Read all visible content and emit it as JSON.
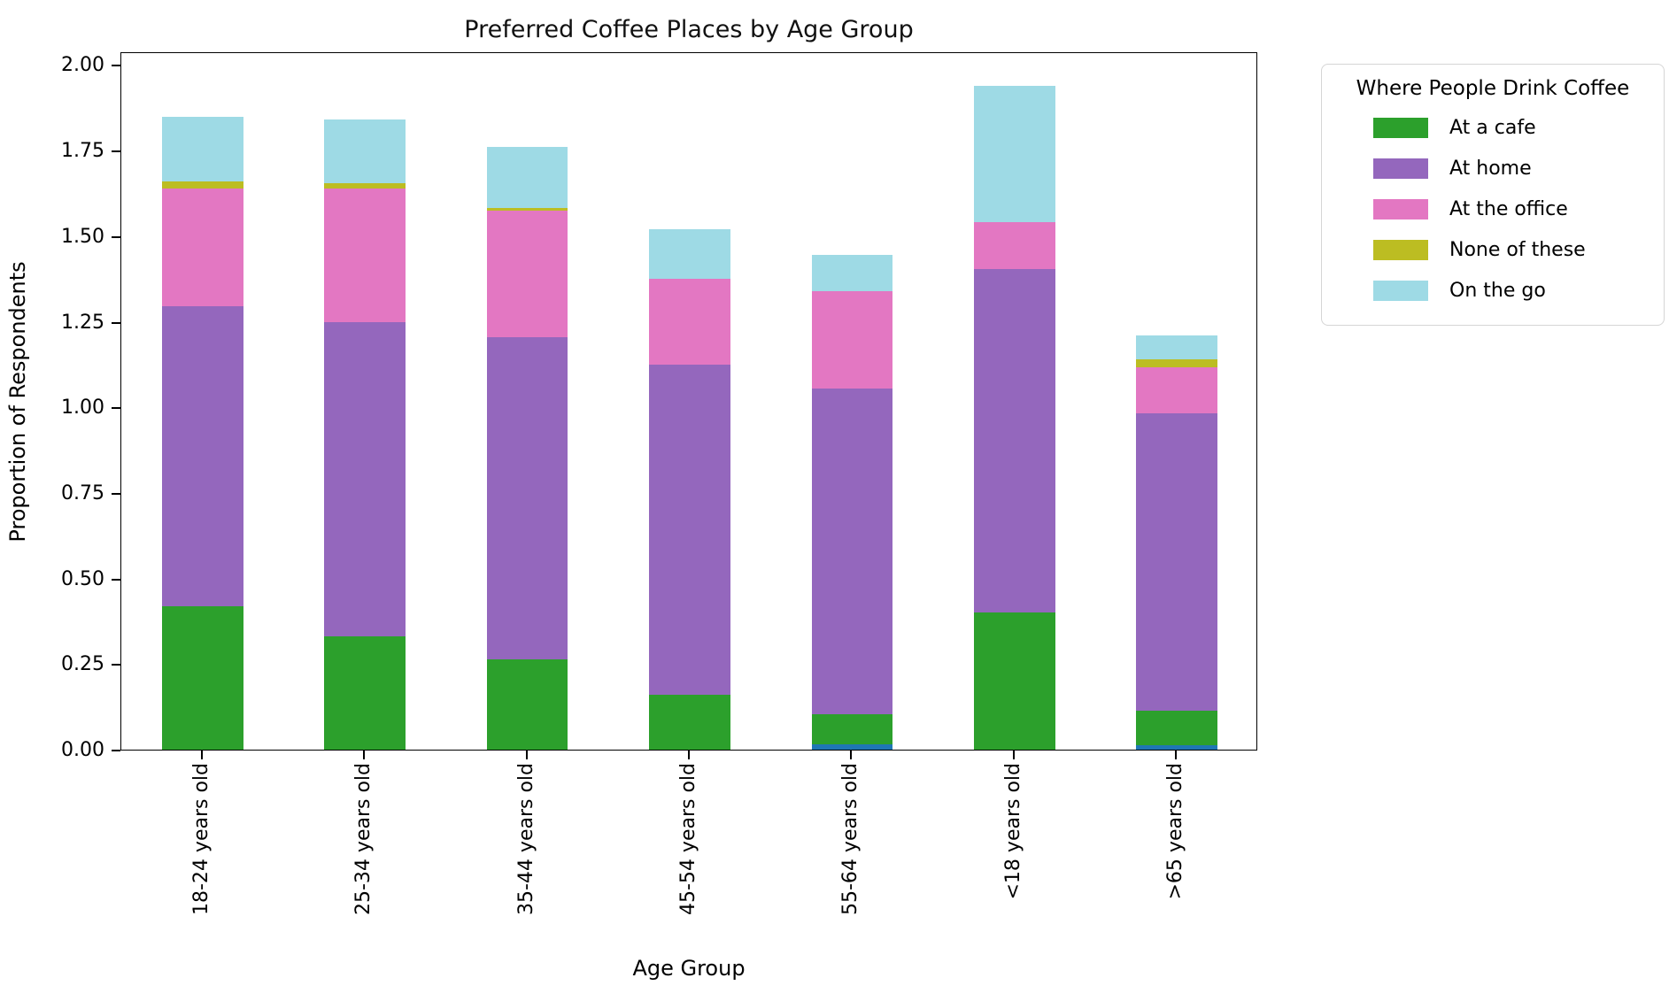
{
  "chart_data": {
    "type": "bar",
    "stacked": true,
    "title": "Preferred Coffee Places by Age Group",
    "xlabel": "Age Group",
    "ylabel": "Proportion of Respondents",
    "ylim": [
      0,
      2.04
    ],
    "ytick_labels": [
      "0.00",
      "0.25",
      "0.50",
      "0.75",
      "1.00",
      "1.25",
      "1.50",
      "1.75",
      "2.00"
    ],
    "ytick_values": [
      0,
      0.25,
      0.5,
      0.75,
      1.0,
      1.25,
      1.5,
      1.75,
      2.0
    ],
    "grid": false,
    "categories": [
      "18-24 years old",
      "25-34 years old",
      "35-44 years old",
      "45-54 years old",
      "55-64 years old",
      "<18 years old",
      ">65 years old"
    ],
    "series": [
      {
        "name": "",
        "color": "#1f77b4",
        "in_legend": false,
        "values": [
          0,
          0,
          0,
          0,
          0.016,
          0,
          0.013
        ]
      },
      {
        "name": "At a cafe",
        "color": "#2ca02c",
        "in_legend": true,
        "values": [
          0.42,
          0.33,
          0.265,
          0.16,
          0.087,
          0.4,
          0.1
        ]
      },
      {
        "name": "At home",
        "color": "#9467bd",
        "in_legend": true,
        "values": [
          0.875,
          0.92,
          0.94,
          0.965,
          0.952,
          1.005,
          0.87
        ]
      },
      {
        "name": "At the office",
        "color": "#e377c2",
        "in_legend": true,
        "values": [
          0.345,
          0.39,
          0.37,
          0.25,
          0.285,
          0.135,
          0.135
        ]
      },
      {
        "name": "None of these",
        "color": "#bcbd22",
        "in_legend": true,
        "values": [
          0.02,
          0.015,
          0.008,
          0,
          0,
          0,
          0.023
        ]
      },
      {
        "name": "On the go",
        "color": "#9edae5",
        "in_legend": true,
        "values": [
          0.19,
          0.185,
          0.177,
          0.145,
          0.105,
          0.4,
          0.068
        ]
      }
    ],
    "legend": {
      "title": "Where People Drink Coffee",
      "position": "outside upper right"
    }
  }
}
